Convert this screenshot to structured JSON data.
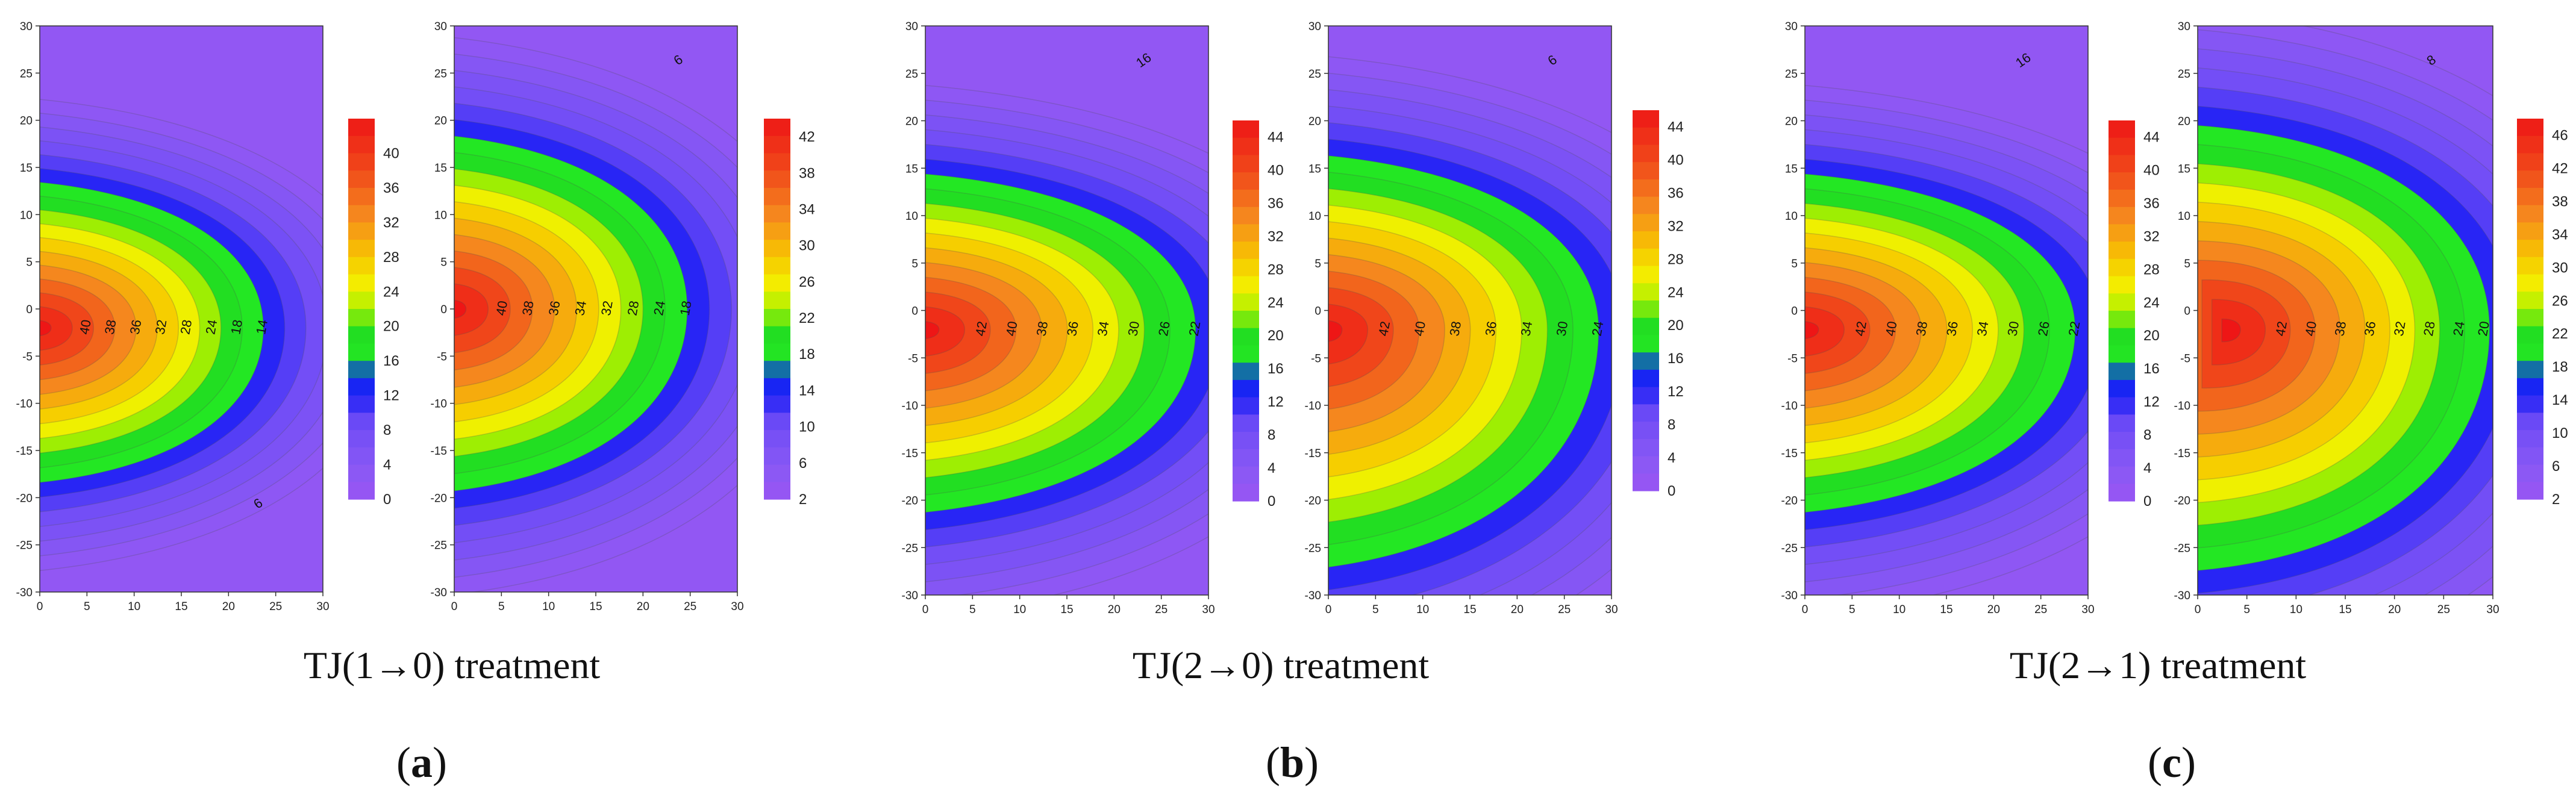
{
  "figure": {
    "groups": [
      {
        "caption": "TJ(1→0) treatment",
        "letter": "a"
      },
      {
        "caption": "TJ(2→0) treatment",
        "letter": "b"
      },
      {
        "caption": "TJ(2→1) treatment",
        "letter": "c"
      }
    ]
  },
  "chart_data": [
    {
      "type": "contour",
      "group": "a",
      "panel": 1,
      "x_ticks": [
        "0",
        "5",
        "10",
        "15",
        "20",
        "25",
        "30"
      ],
      "y_ticks": [
        "30",
        "25",
        "20",
        "15",
        "10",
        "5",
        "0",
        "-5",
        "-10",
        "-15",
        "-20",
        "-25",
        "-30"
      ],
      "xlim": [
        0,
        30
      ],
      "ylim": [
        -30,
        30
      ],
      "colorbar_ticks": [
        "40",
        "36",
        "32",
        "28",
        "24",
        "20",
        "16",
        "12",
        "8",
        "4",
        "0"
      ],
      "colorbar_range": [
        0,
        44
      ],
      "source": {
        "x": 0,
        "y": -2,
        "peak": 44
      },
      "extent": {
        "right": 24,
        "top": 14,
        "bottom": -19
      },
      "contour_labels": [
        "40",
        "38",
        "36",
        "32",
        "28",
        "24",
        "18",
        "14",
        "6"
      ]
    },
    {
      "type": "contour",
      "group": "a",
      "panel": 2,
      "x_ticks": [
        "0",
        "5",
        "10",
        "15",
        "20",
        "25",
        "30"
      ],
      "y_ticks": [
        "30",
        "25",
        "20",
        "15",
        "10",
        "5",
        "0",
        "-5",
        "-10",
        "-15",
        "-20",
        "-25",
        "-30"
      ],
      "xlim": [
        0,
        30
      ],
      "ylim": [
        -30,
        30
      ],
      "colorbar_ticks": [
        "42",
        "38",
        "34",
        "30",
        "26",
        "22",
        "18",
        "14",
        "10",
        "6",
        "2"
      ],
      "colorbar_range": [
        2,
        44
      ],
      "source": {
        "x": 0,
        "y": 0,
        "peak": 44
      },
      "extent": {
        "right": 25,
        "top": 19,
        "bottom": -20
      },
      "contour_labels": [
        "40",
        "38",
        "36",
        "34",
        "32",
        "28",
        "24",
        "18",
        "6"
      ]
    },
    {
      "type": "contour",
      "group": "b",
      "panel": 1,
      "x_ticks": [
        "0",
        "5",
        "10",
        "15",
        "20",
        "25",
        "30"
      ],
      "y_ticks": [
        "30",
        "25",
        "20",
        "15",
        "10",
        "5",
        "0",
        "-5",
        "-10",
        "-15",
        "-20",
        "-25",
        "-30"
      ],
      "xlim": [
        0,
        30
      ],
      "ylim": [
        -30,
        30
      ],
      "colorbar_ticks": [
        "44",
        "40",
        "36",
        "32",
        "28",
        "24",
        "20",
        "16",
        "12",
        "8",
        "4",
        "0"
      ],
      "colorbar_range": [
        0,
        46
      ],
      "source": {
        "x": 0,
        "y": -2,
        "peak": 46
      },
      "extent": {
        "right": 29,
        "top": 15,
        "bottom": -22
      },
      "contour_labels": [
        "42",
        "40",
        "38",
        "36",
        "34",
        "30",
        "26",
        "22",
        "16"
      ]
    },
    {
      "type": "contour",
      "group": "b",
      "panel": 2,
      "x_ticks": [
        "0",
        "5",
        "10",
        "15",
        "20",
        "25",
        "30"
      ],
      "y_ticks": [
        "30",
        "25",
        "20",
        "15",
        "10",
        "5",
        "0",
        "-5",
        "-10",
        "-15",
        "-20",
        "-25",
        "-30"
      ],
      "xlim": [
        0,
        30
      ],
      "ylim": [
        -30,
        30
      ],
      "colorbar_ticks": [
        "44",
        "40",
        "36",
        "32",
        "28",
        "24",
        "20",
        "16",
        "12",
        "8",
        "4",
        "0"
      ],
      "colorbar_range": [
        0,
        46
      ],
      "source": {
        "x": 0,
        "y": -2,
        "peak": 46
      },
      "extent": {
        "right": 29,
        "top": 17,
        "bottom": -28
      },
      "contour_labels": [
        "42",
        "40",
        "38",
        "36",
        "34",
        "30",
        "24",
        "6"
      ]
    },
    {
      "type": "contour",
      "group": "c",
      "panel": 1,
      "x_ticks": [
        "0",
        "5",
        "10",
        "15",
        "20",
        "25",
        "30"
      ],
      "y_ticks": [
        "30",
        "25",
        "20",
        "15",
        "10",
        "5",
        "0",
        "-5",
        "-10",
        "-15",
        "-20",
        "-25",
        "-30"
      ],
      "xlim": [
        0,
        30
      ],
      "ylim": [
        -30,
        30
      ],
      "colorbar_ticks": [
        "44",
        "40",
        "36",
        "32",
        "28",
        "24",
        "20",
        "16",
        "12",
        "8",
        "4",
        "0"
      ],
      "colorbar_range": [
        0,
        46
      ],
      "source": {
        "x": 0,
        "y": -2,
        "peak": 46
      },
      "extent": {
        "right": 29,
        "top": 15,
        "bottom": -22
      },
      "contour_labels": [
        "42",
        "40",
        "38",
        "36",
        "34",
        "30",
        "26",
        "22",
        "16"
      ]
    },
    {
      "type": "contour",
      "group": "c",
      "panel": 2,
      "x_ticks": [
        "0",
        "5",
        "10",
        "15",
        "20",
        "25",
        "30"
      ],
      "y_ticks": [
        "30",
        "25",
        "20",
        "15",
        "10",
        "5",
        "0",
        "-5",
        "-10",
        "-15",
        "-20",
        "-25",
        "-30"
      ],
      "xlim": [
        0,
        30
      ],
      "ylim": [
        -30,
        30
      ],
      "colorbar_ticks": [
        "46",
        "42",
        "38",
        "34",
        "30",
        "26",
        "22",
        "18",
        "14",
        "10",
        "6",
        "2"
      ],
      "colorbar_range": [
        2,
        48
      ],
      "source": {
        "x": 3,
        "y": -2,
        "peak": 48
      },
      "extent": {
        "right": 30,
        "top": 20,
        "bottom": -28
      },
      "contour_labels": [
        "42",
        "40",
        "38",
        "36",
        "32",
        "28",
        "24",
        "20",
        "8"
      ]
    }
  ]
}
